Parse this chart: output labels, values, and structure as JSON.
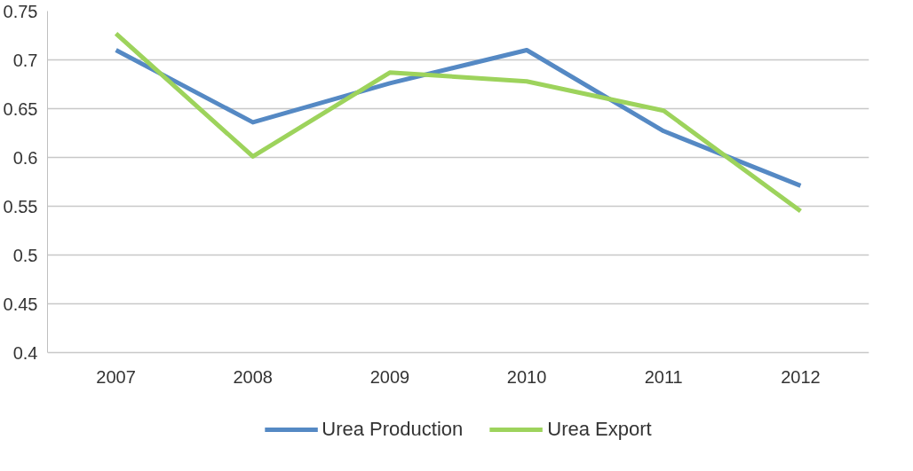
{
  "chart_data": {
    "type": "line",
    "categories": [
      "2007",
      "2008",
      "2009",
      "2010",
      "2011",
      "2012"
    ],
    "series": [
      {
        "name": "Urea Production",
        "color": "#5589c4",
        "values": [
          0.71,
          0.636,
          0.676,
          0.71,
          0.627,
          0.571
        ]
      },
      {
        "name": "Urea Export",
        "color": "#9dd35c",
        "values": [
          0.727,
          0.601,
          0.687,
          0.678,
          0.648,
          0.545
        ]
      }
    ],
    "ylim": [
      0.4,
      0.75
    ],
    "yticks": [
      0.4,
      0.45,
      0.5,
      0.55,
      0.6,
      0.65,
      0.7,
      0.75
    ],
    "grid": "y",
    "legend": "bottom",
    "marker": "none",
    "line_style": "solid"
  }
}
